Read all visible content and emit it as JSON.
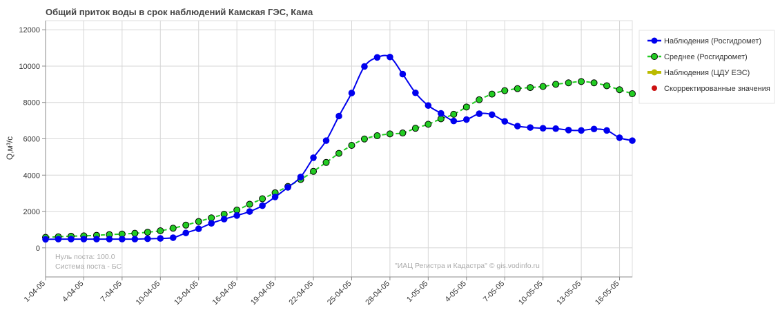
{
  "chart_data": {
    "type": "line",
    "title": "Общий приток воды в срок наблюдений Камская ГЭС,  Кама",
    "ylabel": "Q,м³/с",
    "xlabel": "",
    "ylim": [
      -1600,
      12500
    ],
    "yticks": [
      0,
      2000,
      4000,
      6000,
      8000,
      10000,
      12000
    ],
    "x_ticks": [
      "1-04-05",
      "4-04-05",
      "7-04-05",
      "10-04-05",
      "13-04-05",
      "16-04-05",
      "19-04-05",
      "22-04-05",
      "25-04-05",
      "28-04-05",
      "1-05-05",
      "4-05-05",
      "7-05-05",
      "10-05-05",
      "13-05-05",
      "16-05-05"
    ],
    "x_tick_step_days": 3,
    "grid": true,
    "legend_position": "right",
    "series": [
      {
        "name": "Наблюдения (Росгидромет)",
        "color": "#0000ee",
        "style": "solid",
        "marker": "filled-circle",
        "values": [
          470,
          480,
          480,
          480,
          480,
          480,
          480,
          480,
          500,
          520,
          560,
          820,
          1050,
          1350,
          1580,
          1780,
          2000,
          2320,
          2800,
          3330,
          3900,
          4960,
          5900,
          7250,
          8520,
          9980,
          10480,
          10500,
          9560,
          8530,
          7830,
          7400,
          6980,
          7060,
          7380,
          7330,
          6960,
          6700,
          6620,
          6580,
          6560,
          6480,
          6460,
          6540,
          6460,
          6060,
          5900
        ]
      },
      {
        "name": "Среднее (Росгидромет)",
        "color": "#22cc22",
        "style": "dashed",
        "marker": "green-circle",
        "values": [
          580,
          610,
          640,
          660,
          690,
          730,
          760,
          800,
          860,
          940,
          1080,
          1250,
          1450,
          1650,
          1850,
          2080,
          2400,
          2700,
          3030,
          3380,
          3760,
          4210,
          4700,
          5200,
          5640,
          5990,
          6170,
          6270,
          6320,
          6580,
          6800,
          7100,
          7350,
          7750,
          8150,
          8460,
          8650,
          8760,
          8820,
          8880,
          9000,
          9080,
          9150,
          9080,
          8920,
          8700,
          8480
        ]
      },
      {
        "name": "Наблюдения (ЦДУ ЕЭС)",
        "color": "#bbbb00",
        "style": "solid",
        "marker": "filled-circle",
        "values": []
      },
      {
        "name": "Скорректированные значения",
        "color": "#cc1111",
        "style": "none",
        "marker": "red-dot",
        "values": []
      }
    ]
  },
  "notes": {
    "zero_post": "Нуль поста: 100.0",
    "system": "Система поста - БС",
    "copyright": "\"ИАЦ Регистра и Кадастра\" © gis.vodinfo.ru"
  }
}
